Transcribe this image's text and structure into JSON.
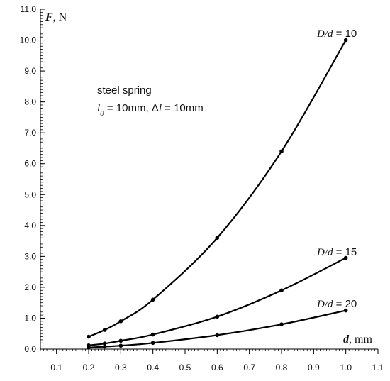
{
  "chart_data": {
    "type": "line",
    "x_axis": {
      "label_var": "d",
      "label_unit": ", mm",
      "range": [
        0.05,
        1.1
      ],
      "tick_values": [
        0.1,
        0.2,
        0.3,
        0.4,
        0.5,
        0.6,
        0.7,
        0.8,
        0.9,
        1.0,
        1.1
      ],
      "tick_labels": [
        "0.1",
        "0.2",
        "0.3",
        "0.4",
        "0.5",
        "0.6",
        "0.7",
        "0.8",
        "0.9",
        "1.0",
        "1.1"
      ],
      "minor_step": 0.01
    },
    "y_axis": {
      "label_var": "F",
      "label_unit": ", N",
      "range": [
        0,
        11
      ],
      "tick_values": [
        0,
        1,
        2,
        3,
        4,
        5,
        6,
        7,
        8,
        9,
        10,
        11
      ],
      "tick_labels": [
        "0.0",
        "1.0",
        "2.0",
        "3.0",
        "4.0",
        "5.0",
        "6.0",
        "7.0",
        "8.0",
        "9.0",
        "10.0",
        "11.0"
      ],
      "minor_step": 0.1
    },
    "series": [
      {
        "label_var": "D/d",
        "label_value": " = 10",
        "x": [
          0.2,
          0.25,
          0.3,
          0.4,
          0.6,
          0.8,
          1.0
        ],
        "y": [
          0.4,
          0.62,
          0.9,
          1.6,
          3.6,
          6.4,
          10.0
        ]
      },
      {
        "label_var": "D/d",
        "label_value": " = 15",
        "x": [
          0.2,
          0.25,
          0.3,
          0.4,
          0.6,
          0.8,
          1.0
        ],
        "y": [
          0.12,
          0.18,
          0.27,
          0.47,
          1.05,
          1.9,
          2.95
        ]
      },
      {
        "label_var": "D/d",
        "label_value": " = 20",
        "x": [
          0.2,
          0.25,
          0.3,
          0.4,
          0.6,
          0.8,
          1.0
        ],
        "y": [
          0.05,
          0.08,
          0.11,
          0.2,
          0.45,
          0.8,
          1.25
        ]
      }
    ],
    "annotation": {
      "line1": "steel spring",
      "l_symbol": "l",
      "l_sub": "0",
      "l_rest": " = 10mm, ",
      "delta": "Δ",
      "dl_symbol": "l",
      "dl_rest": " = 10mm"
    },
    "grid": false,
    "colors": {
      "line": "#000000",
      "marker": "#000000"
    }
  }
}
